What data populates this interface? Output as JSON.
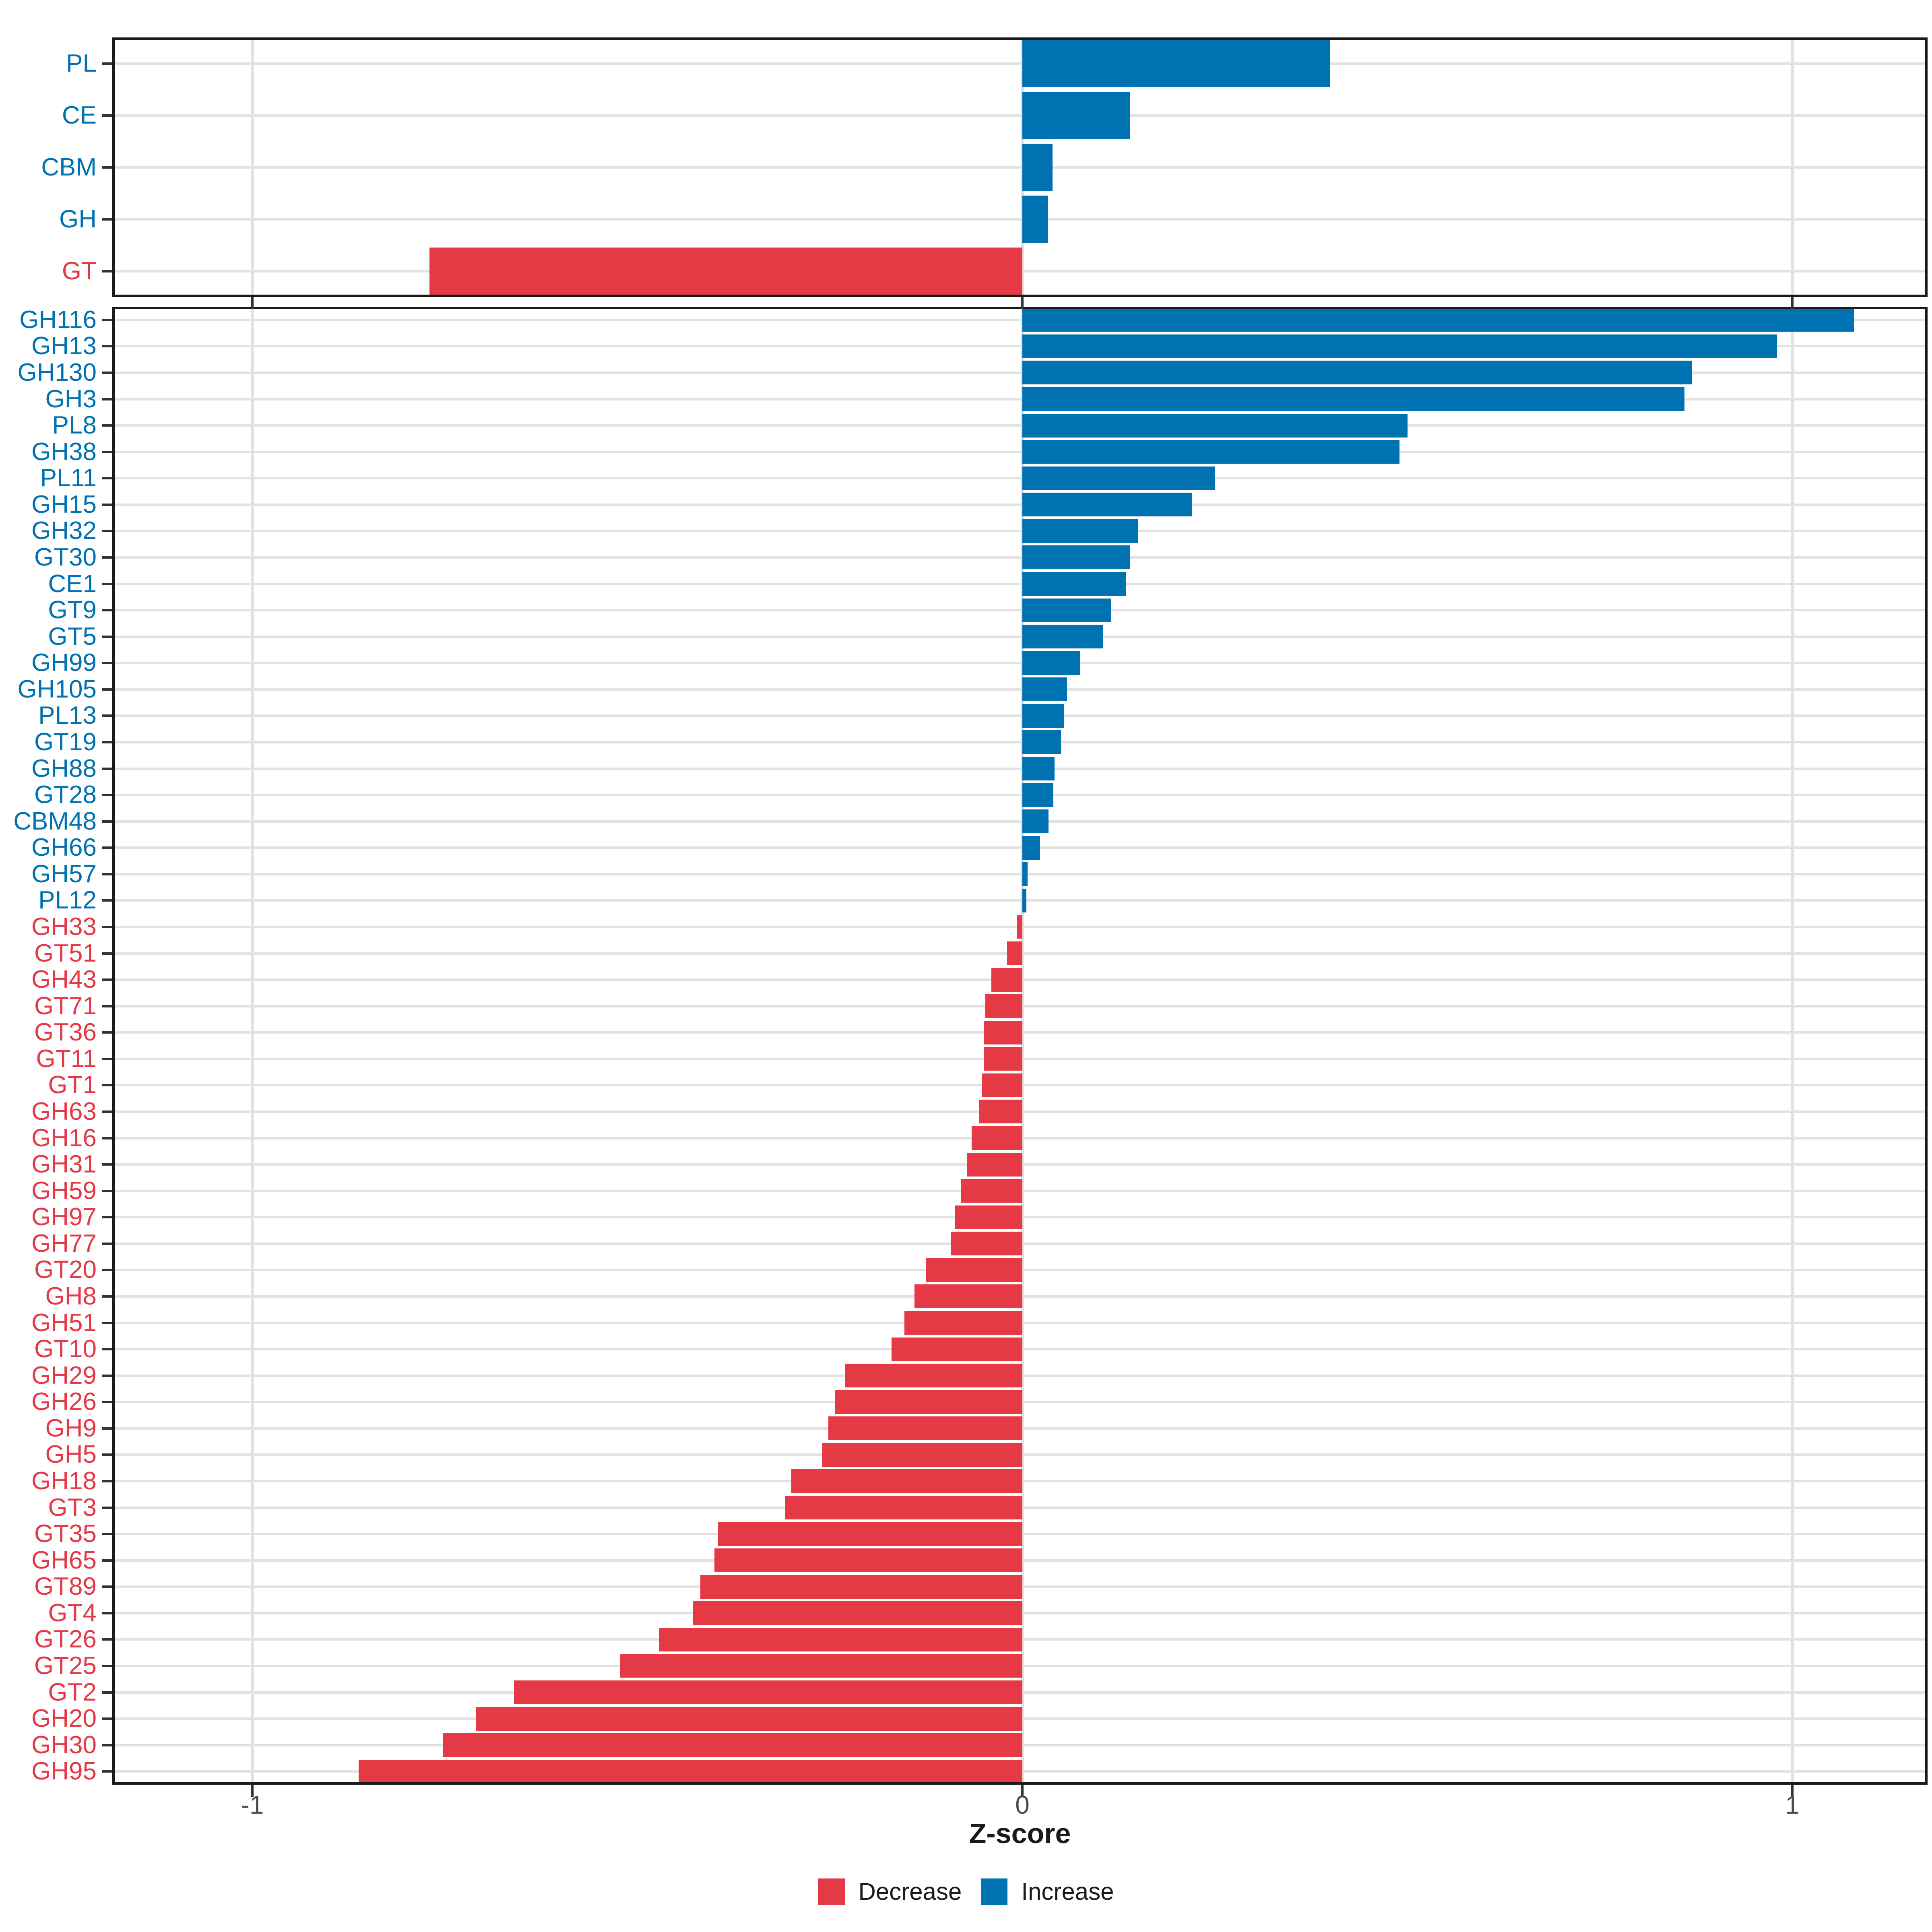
{
  "colors": {
    "increase": "#0072B2",
    "decrease": "#E63946",
    "tick_label": "#4D4D4D",
    "axis_title": "#1A1A1A",
    "gridline": "#E2E2E2",
    "panel_border": "#1A1A1A"
  },
  "x_axis": {
    "label": "Z-score",
    "ticks": [
      {
        "label": "-1",
        "value": -1
      },
      {
        "label": "0",
        "value": 0
      },
      {
        "label": "1",
        "value": 1
      }
    ]
  },
  "legend": {
    "items": [
      {
        "label": "Decrease",
        "color_key": "decrease"
      },
      {
        "label": "Increase",
        "color_key": "increase"
      }
    ]
  },
  "chart_data": [
    {
      "type": "bar",
      "orientation": "horizontal",
      "panel": "cazyme-classes",
      "title": "",
      "xlabel": "Z-score",
      "xlim": [
        -1.18,
        1.18
      ],
      "grid": true,
      "legend_position": "bottom",
      "categories": [
        "PL",
        "CE",
        "CBM",
        "GH",
        "GT"
      ],
      "values": [
        0.4,
        0.14,
        0.039,
        0.033,
        -0.77
      ]
    },
    {
      "type": "bar",
      "orientation": "horizontal",
      "panel": "cazyme-families",
      "title": "",
      "xlabel": "Z-score",
      "xlim": [
        -1.18,
        1.18
      ],
      "grid": true,
      "legend_position": "bottom",
      "categories": [
        "GH116",
        "GH13",
        "GH130",
        "GH3",
        "PL8",
        "GH38",
        "PL11",
        "GH15",
        "GH32",
        "GT30",
        "CE1",
        "GT9",
        "GT5",
        "GH99",
        "GH105",
        "PL13",
        "GT19",
        "GH88",
        "GT28",
        "CBM48",
        "GH66",
        "GH57",
        "PL12",
        "GH33",
        "GT51",
        "GH43",
        "GT71",
        "GT36",
        "GT11",
        "GT1",
        "GH63",
        "GH16",
        "GH31",
        "GH59",
        "GH97",
        "GH77",
        "GT20",
        "GH8",
        "GH51",
        "GT10",
        "GH29",
        "GH26",
        "GH9",
        "GH5",
        "GH18",
        "GT3",
        "GT35",
        "GH65",
        "GT89",
        "GT4",
        "GT26",
        "GT25",
        "GT2",
        "GH20",
        "GH30",
        "GH95"
      ],
      "values": [
        1.08,
        0.98,
        0.87,
        0.86,
        0.5,
        0.49,
        0.25,
        0.22,
        0.15,
        0.14,
        0.135,
        0.115,
        0.105,
        0.075,
        0.058,
        0.054,
        0.05,
        0.042,
        0.04,
        0.034,
        0.023,
        0.007,
        0.005,
        -0.007,
        -0.02,
        -0.04,
        -0.048,
        -0.05,
        -0.05,
        -0.053,
        -0.056,
        -0.066,
        -0.072,
        -0.08,
        -0.088,
        -0.093,
        -0.125,
        -0.14,
        -0.153,
        -0.17,
        -0.23,
        -0.243,
        -0.252,
        -0.26,
        -0.3,
        -0.308,
        -0.395,
        -0.4,
        -0.418,
        -0.428,
        -0.472,
        -0.522,
        -0.66,
        -0.71,
        -0.753,
        -0.862
      ]
    }
  ]
}
